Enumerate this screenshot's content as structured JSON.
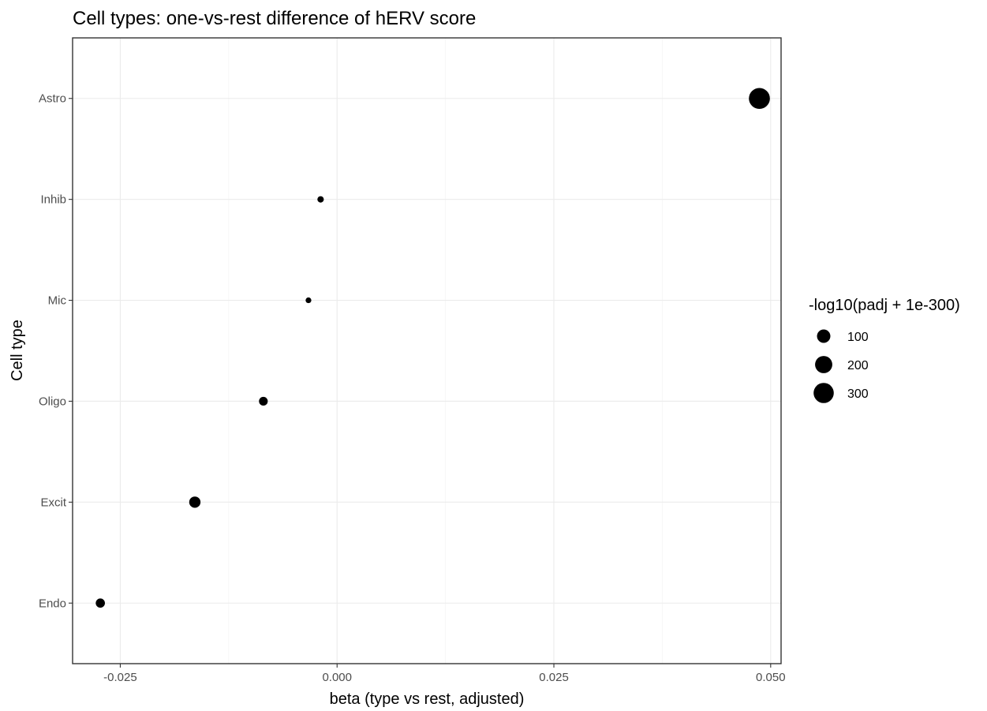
{
  "chart_data": {
    "type": "scatter",
    "title": "Cell types: one-vs-rest difference of hERV score",
    "xlabel": "beta (type vs rest, adjusted)",
    "ylabel": "Cell type",
    "xlim": [
      -0.0305,
      0.0512
    ],
    "x_ticks": [
      -0.025,
      0.0,
      0.025,
      0.05
    ],
    "x_tick_labels": [
      "-0.025",
      "0.000",
      "0.025",
      "0.050"
    ],
    "categories": [
      "Endo",
      "Excit",
      "Oligo",
      "Mic",
      "Inhib",
      "Astro"
    ],
    "points": [
      {
        "category": "Astro",
        "x": 0.0487,
        "size": 330
      },
      {
        "category": "Inhib",
        "x": -0.0019,
        "size": 6
      },
      {
        "category": "Mic",
        "x": -0.0033,
        "size": 3
      },
      {
        "category": "Oligo",
        "x": -0.0085,
        "size": 25
      },
      {
        "category": "Excit",
        "x": -0.0164,
        "size": 60
      },
      {
        "category": "Endo",
        "x": -0.0273,
        "size": 30
      }
    ],
    "size_legend": {
      "title": "-log10(padj + 1e-300)",
      "values": [
        100,
        200,
        300
      ],
      "labels": [
        "100",
        "200",
        "300"
      ],
      "position": "right"
    },
    "grid": true,
    "point_color": "#000000"
  }
}
